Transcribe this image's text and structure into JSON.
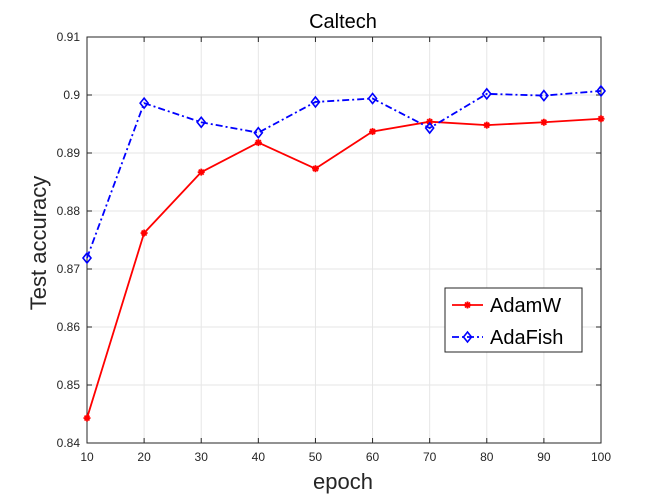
{
  "chart_data": {
    "type": "line",
    "title": "Caltech",
    "xlabel": "epoch",
    "ylabel": "Test accuracy",
    "x": [
      10,
      20,
      30,
      40,
      50,
      60,
      70,
      80,
      90,
      100
    ],
    "xlim": [
      10,
      100
    ],
    "ylim": [
      0.84,
      0.91
    ],
    "xticks": [
      10,
      20,
      30,
      40,
      50,
      60,
      70,
      80,
      90,
      100
    ],
    "xtick_labels": [
      "10",
      "20",
      "30",
      "40",
      "50",
      "60",
      "70",
      "80",
      "90",
      "100"
    ],
    "yticks": [
      0.84,
      0.85,
      0.86,
      0.87,
      0.88,
      0.89,
      0.9,
      0.91
    ],
    "ytick_labels": [
      "0.84",
      "0.85",
      "0.86",
      "0.87",
      "0.88",
      "0.89",
      "0.9",
      "0.91"
    ],
    "grid": true,
    "legend_position": "bottom-right",
    "series": [
      {
        "name": "AdamW",
        "color": "#ff0000",
        "line_style": "solid",
        "marker": "asterisk",
        "values": [
          0.8443,
          0.8762,
          0.8867,
          0.8918,
          0.8873,
          0.8937,
          0.8954,
          0.8948,
          0.8953,
          0.8959
        ]
      },
      {
        "name": "AdaFish",
        "color": "#0000ff",
        "line_style": "dash-dot",
        "marker": "diamond",
        "values": [
          0.8719,
          0.8986,
          0.8953,
          0.8935,
          0.8988,
          0.8994,
          0.8943,
          0.9002,
          0.8999,
          0.9007
        ]
      }
    ]
  }
}
